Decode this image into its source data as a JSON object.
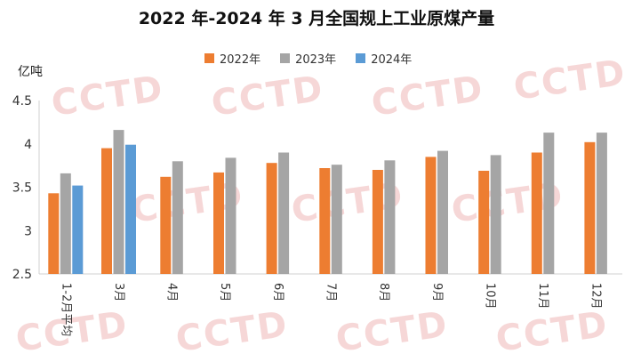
{
  "watermark": "CCTD",
  "chart_data": {
    "type": "bar",
    "title": "2022 年-2024 年 3 月全国规上工业原煤产量",
    "unit": "亿吨",
    "xlabel": "",
    "ylabel": "亿吨",
    "ylim": [
      2.5,
      4.5
    ],
    "yticks": [
      "2.5",
      "3",
      "3.5",
      "4",
      "4.5"
    ],
    "grid": false,
    "legend_position": "top",
    "categories": [
      "1-2月平均",
      "3月",
      "4月",
      "5月",
      "6月",
      "7月",
      "8月",
      "9月",
      "10月",
      "11月",
      "12月"
    ],
    "series": [
      {
        "name": "2022年",
        "color": "#ED7D31",
        "values": [
          3.43,
          3.95,
          3.62,
          3.67,
          3.78,
          3.72,
          3.7,
          3.85,
          3.69,
          3.9,
          4.02
        ]
      },
      {
        "name": "2023年",
        "color": "#A5A5A5",
        "values": [
          3.66,
          4.16,
          3.8,
          3.84,
          3.9,
          3.76,
          3.81,
          3.92,
          3.87,
          4.13,
          4.13
        ]
      },
      {
        "name": "2024年",
        "color": "#5B9BD5",
        "values": [
          3.52,
          3.99,
          null,
          null,
          null,
          null,
          null,
          null,
          null,
          null,
          null
        ]
      }
    ]
  }
}
